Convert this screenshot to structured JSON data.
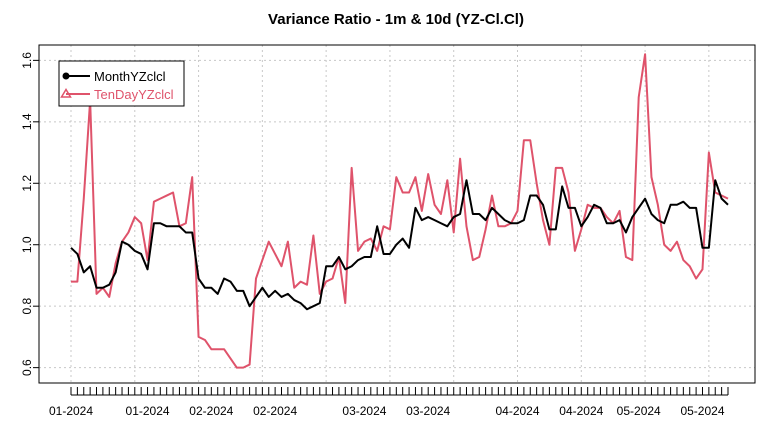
{
  "chart_data": {
    "type": "line",
    "title": "Variance Ratio - 1m & 10d (YZ-Cl.Cl)",
    "xlabel": "",
    "ylabel": "",
    "ylim": [
      0.55,
      1.65
    ],
    "yticks": [
      0.6,
      0.8,
      1.0,
      1.2,
      1.4,
      1.6
    ],
    "ytick_labels": [
      "0.6",
      "0.8",
      "1.0",
      "1.2",
      "1.4",
      "1.6"
    ],
    "xlim": [
      0,
      103
    ],
    "x_tick_labels": [
      {
        "i": 0,
        "label": "01-2024"
      },
      {
        "i": 12,
        "label": "01-2024"
      },
      {
        "i": 22,
        "label": "02-2024"
      },
      {
        "i": 32,
        "label": "02-2024"
      },
      {
        "i": 46,
        "label": "03-2024"
      },
      {
        "i": 56,
        "label": "03-2024"
      },
      {
        "i": 70,
        "label": "04-2024"
      },
      {
        "i": 80,
        "label": "04-2024"
      },
      {
        "i": 89,
        "label": "05-2024"
      },
      {
        "i": 99,
        "label": "05-2024"
      }
    ],
    "grid": true,
    "legend_position": "top-left",
    "series": [
      {
        "name": "MonthYZclcl",
        "color": "#000000",
        "marker": "circle",
        "values": [
          0.99,
          0.97,
          0.91,
          0.93,
          0.86,
          0.86,
          0.87,
          0.91,
          1.01,
          1.0,
          0.98,
          0.97,
          0.92,
          1.07,
          1.07,
          1.06,
          1.06,
          1.06,
          1.04,
          1.04,
          0.89,
          0.86,
          0.86,
          0.84,
          0.89,
          0.88,
          0.85,
          0.85,
          0.8,
          0.83,
          0.86,
          0.83,
          0.85,
          0.83,
          0.84,
          0.82,
          0.81,
          0.79,
          0.8,
          0.81,
          0.93,
          0.93,
          0.96,
          0.92,
          0.93,
          0.95,
          0.96,
          0.96,
          1.06,
          0.97,
          0.97,
          1.0,
          1.02,
          0.99,
          1.12,
          1.08,
          1.09,
          1.08,
          1.07,
          1.06,
          1.09,
          1.1,
          1.21,
          1.1,
          1.1,
          1.08,
          1.12,
          1.1,
          1.08,
          1.07,
          1.07,
          1.08,
          1.16,
          1.16,
          1.13,
          1.05,
          1.05,
          1.19,
          1.12,
          1.12,
          1.06,
          1.09,
          1.13,
          1.12,
          1.07,
          1.07,
          1.08,
          1.04,
          1.09,
          1.12,
          1.15,
          1.1,
          1.08,
          1.07,
          1.13,
          1.13,
          1.14,
          1.12,
          1.12,
          0.99,
          0.99,
          1.21,
          1.15,
          1.13
        ]
      },
      {
        "name": "TenDayYZclcl",
        "color": "#DF536B",
        "marker": "triangle",
        "values": [
          0.88,
          0.88,
          1.15,
          1.47,
          0.84,
          0.86,
          0.83,
          0.94,
          1.01,
          1.04,
          1.09,
          1.07,
          0.95,
          1.14,
          1.15,
          1.16,
          1.17,
          1.06,
          1.07,
          1.22,
          0.7,
          0.69,
          0.66,
          0.66,
          0.66,
          0.63,
          0.6,
          0.6,
          0.61,
          0.89,
          0.95,
          1.01,
          0.97,
          0.93,
          1.01,
          0.86,
          0.88,
          0.87,
          1.03,
          0.84,
          0.88,
          0.89,
          0.96,
          0.81,
          1.25,
          0.98,
          1.01,
          1.02,
          0.98,
          1.06,
          1.05,
          1.22,
          1.17,
          1.17,
          1.22,
          1.11,
          1.23,
          1.13,
          1.1,
          1.21,
          1.04,
          1.28,
          1.06,
          0.95,
          0.96,
          1.05,
          1.16,
          1.06,
          1.06,
          1.07,
          1.11,
          1.34,
          1.34,
          1.2,
          1.08,
          1.0,
          1.25,
          1.25,
          1.17,
          0.98,
          1.05,
          1.13,
          1.12,
          1.12,
          1.09,
          1.07,
          1.11,
          0.96,
          0.95,
          1.48,
          1.62,
          1.22,
          1.13,
          1.0,
          0.98,
          1.01,
          0.95,
          0.93,
          0.89,
          0.92,
          1.3,
          1.17,
          1.16,
          1.15
        ]
      }
    ]
  }
}
